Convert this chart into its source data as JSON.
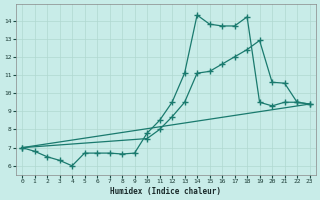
{
  "xlabel": "Humidex (Indice chaleur)",
  "background_color": "#c8ece8",
  "grid_color": "#b0d8d0",
  "line_color": "#1a7a6e",
  "xlim": [
    -0.5,
    23.5
  ],
  "ylim": [
    5.5,
    14.9
  ],
  "xticks": [
    0,
    1,
    2,
    3,
    4,
    5,
    6,
    7,
    8,
    9,
    10,
    11,
    12,
    13,
    14,
    15,
    16,
    17,
    18,
    19,
    20,
    21,
    22,
    23
  ],
  "yticks": [
    6,
    7,
    8,
    9,
    10,
    11,
    12,
    13,
    14
  ],
  "line1_x": [
    0,
    1,
    2,
    3,
    4,
    5,
    6,
    7,
    8,
    9,
    10,
    11,
    12,
    13,
    14,
    15,
    16,
    17,
    18,
    19,
    20,
    21,
    22,
    23
  ],
  "line1_y": [
    7.0,
    6.8,
    6.5,
    6.3,
    6.0,
    6.7,
    6.7,
    6.7,
    6.65,
    6.7,
    7.8,
    8.5,
    9.5,
    11.1,
    14.3,
    13.8,
    13.7,
    13.7,
    14.2,
    9.5,
    9.3,
    9.5,
    9.5,
    9.4
  ],
  "line2_x": [
    0,
    10,
    11,
    12,
    13,
    14,
    15,
    16,
    17,
    18,
    19,
    20,
    21,
    22,
    23
  ],
  "line2_y": [
    7.0,
    7.5,
    8.0,
    8.7,
    9.5,
    11.1,
    11.2,
    11.6,
    12.0,
    12.4,
    12.9,
    10.6,
    10.55,
    9.5,
    9.4
  ],
  "line3_x": [
    0,
    23
  ],
  "line3_y": [
    7.0,
    9.4
  ]
}
